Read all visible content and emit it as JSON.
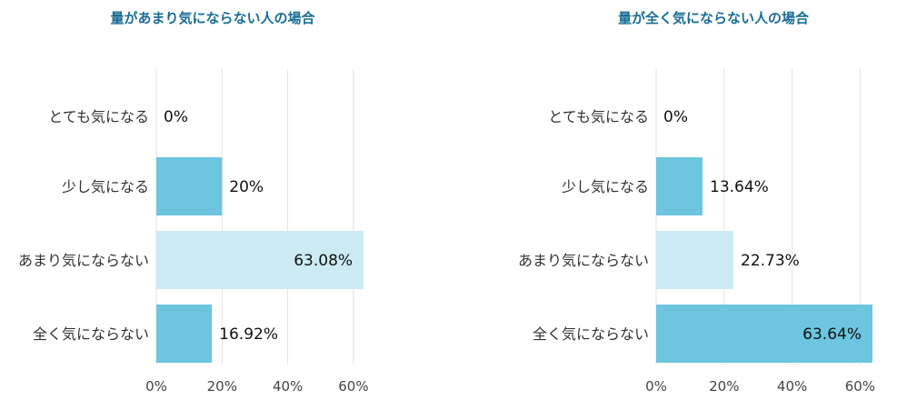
{
  "colors": {
    "title": "#1a6d96",
    "bar_dark": "#6dc5e0",
    "bar_light": "#cdebf5",
    "grid": "#e2e2e2"
  },
  "chart_data": [
    {
      "type": "bar",
      "orientation": "horizontal",
      "title": "量があまり気にならない人の場合",
      "categories": [
        "とても気になる",
        "少し気になる",
        "あまり気にならない",
        "全く気にならない"
      ],
      "values": [
        0,
        20,
        63.08,
        16.92
      ],
      "value_labels": [
        "0%",
        "20%",
        "63.08%",
        "16.92%"
      ],
      "bar_colors": [
        "#6dc5e0",
        "#6dc5e0",
        "#cdebf5",
        "#6dc5e0"
      ],
      "xticks": [
        0,
        20,
        40,
        60
      ],
      "xtick_labels": [
        "0%",
        "20%",
        "40%",
        "60%"
      ],
      "xlim": [
        0,
        65
      ],
      "grid": true
    },
    {
      "type": "bar",
      "orientation": "horizontal",
      "title": "量が全く気にならない人の場合",
      "categories": [
        "とても気になる",
        "少し気になる",
        "あまり気にならない",
        "全く気にならない"
      ],
      "values": [
        0,
        13.64,
        22.73,
        63.64
      ],
      "value_labels": [
        "0%",
        "13.64%",
        "22.73%",
        "63.64%"
      ],
      "bar_colors": [
        "#6dc5e0",
        "#6dc5e0",
        "#cdebf5",
        "#6dc5e0"
      ],
      "xticks": [
        0,
        20,
        40,
        60
      ],
      "xtick_labels": [
        "0%",
        "20%",
        "40%",
        "60%"
      ],
      "xlim": [
        0,
        63.64
      ],
      "grid": true
    }
  ]
}
